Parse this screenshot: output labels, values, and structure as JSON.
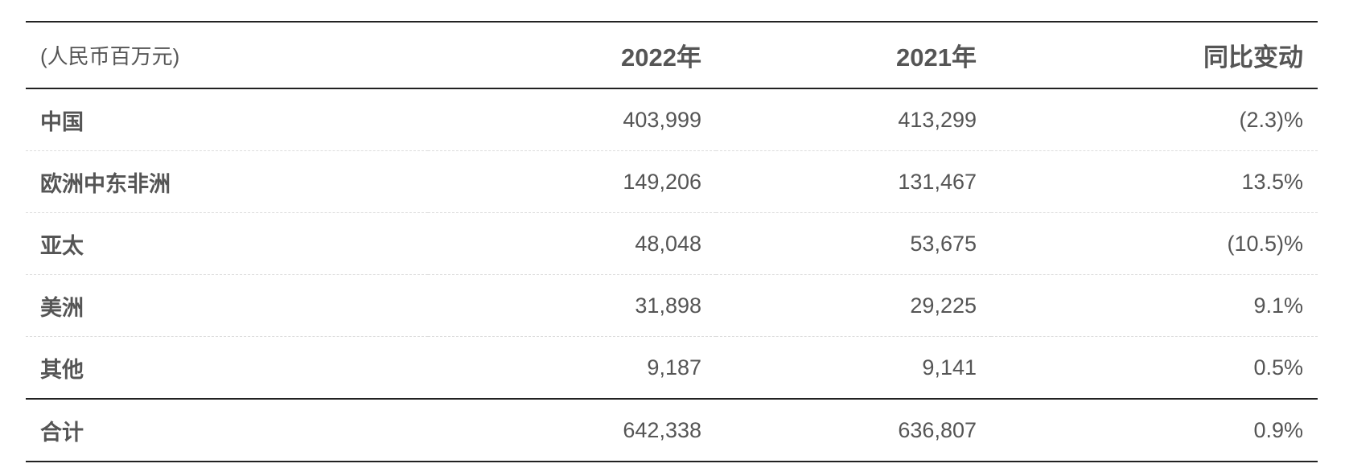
{
  "table": {
    "header": [
      "(人民币百万元)",
      "2022年",
      "2021年",
      "同比变动"
    ],
    "rows": [
      [
        "中国",
        "403,999",
        "413,299",
        "(2.3)%"
      ],
      [
        "欧洲中东非洲",
        "149,206",
        "131,467",
        "13.5%"
      ],
      [
        "亚太",
        "48,048",
        "53,675",
        "(10.5)%"
      ],
      [
        "美洲",
        "31,898",
        "29,225",
        "9.1%"
      ],
      [
        "其他",
        "9,187",
        "9,141",
        "0.5%"
      ],
      [
        "合计",
        "642,338",
        "636,807",
        "0.9%"
      ]
    ]
  }
}
